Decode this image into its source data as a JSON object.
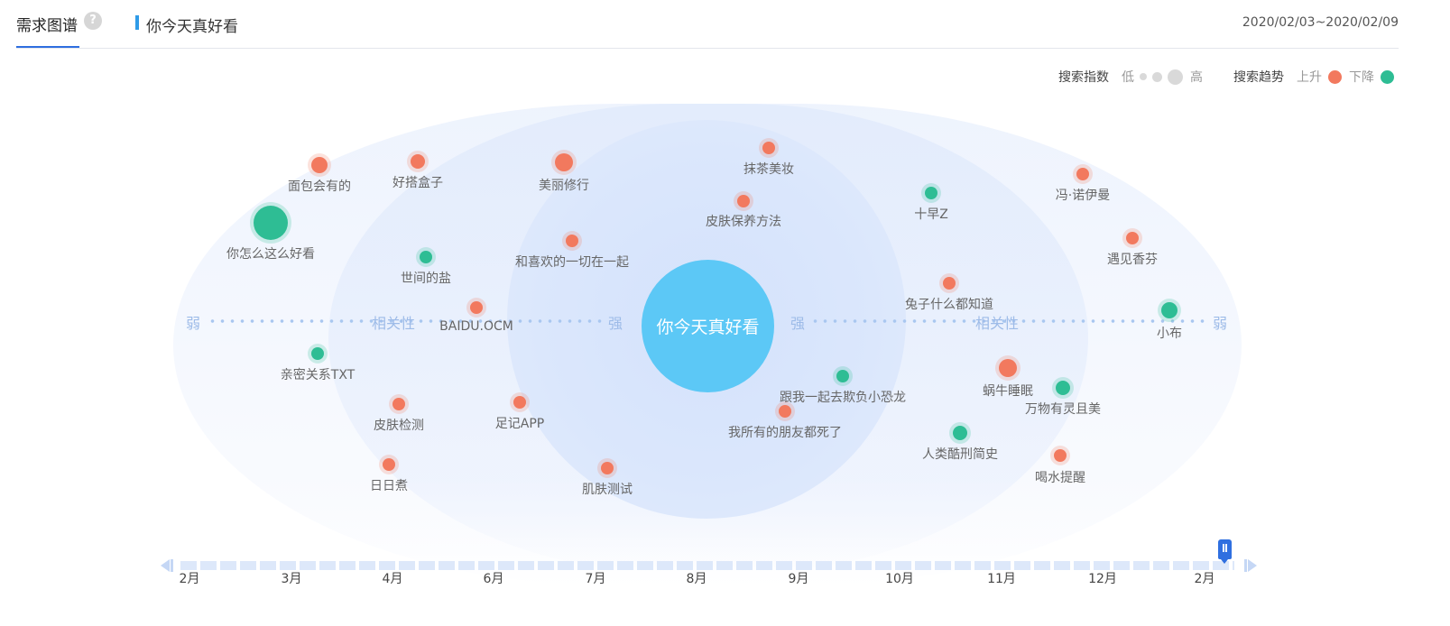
{
  "header": {
    "tab_label": "需求图谱",
    "help_icon": "?",
    "keyword": "你今天真好看",
    "date_range": "2020/02/03~2020/02/09"
  },
  "legend": {
    "index_label": "搜索指数",
    "low": "低",
    "high": "高",
    "trend_label": "搜索趋势",
    "up": "上升",
    "down": "下降",
    "colors": {
      "up": "#f2795e",
      "down": "#2ebd94"
    }
  },
  "axis": {
    "weak": "弱",
    "relevance": "相关性",
    "strong": "强"
  },
  "center": {
    "label": "你今天真好看",
    "color": "#5cc8f6"
  },
  "nodes": [
    {
      "label": "面包会有的",
      "trend": "up"
    },
    {
      "label": "好搭盒子",
      "trend": "up"
    },
    {
      "label": "美丽修行",
      "trend": "up"
    },
    {
      "label": "抹茶美妆",
      "trend": "up"
    },
    {
      "label": "皮肤保养方法",
      "trend": "up"
    },
    {
      "label": "十早Z",
      "trend": "down"
    },
    {
      "label": "冯·诺伊曼",
      "trend": "up"
    },
    {
      "label": "你怎么这么好看",
      "trend": "down"
    },
    {
      "label": "遇见香芬",
      "trend": "up"
    },
    {
      "label": "世间的盐",
      "trend": "down"
    },
    {
      "label": "和喜欢的一切在一起",
      "trend": "up"
    },
    {
      "label": "兔子什么都知道",
      "trend": "up"
    },
    {
      "label": "BAIDU.OCM",
      "trend": "up"
    },
    {
      "label": "小布",
      "trend": "down"
    },
    {
      "label": "亲密关系TXT",
      "trend": "down"
    },
    {
      "label": "蜗牛睡眠",
      "trend": "up"
    },
    {
      "label": "跟我一起去欺负小恐龙",
      "trend": "down"
    },
    {
      "label": "万物有灵且美",
      "trend": "down"
    },
    {
      "label": "皮肤检测",
      "trend": "up"
    },
    {
      "label": "足记APP",
      "trend": "up"
    },
    {
      "label": "我所有的朋友都死了",
      "trend": "up"
    },
    {
      "label": "人类酷刑简史",
      "trend": "down"
    },
    {
      "label": "喝水提醒",
      "trend": "up"
    },
    {
      "label": "日日煮",
      "trend": "up"
    },
    {
      "label": "肌肤测试",
      "trend": "up"
    }
  ],
  "timeline": {
    "months": [
      "2月",
      "3月",
      "4月",
      "6月",
      "7月",
      "8月",
      "9月",
      "10月",
      "11月",
      "12月",
      "2月"
    ]
  }
}
